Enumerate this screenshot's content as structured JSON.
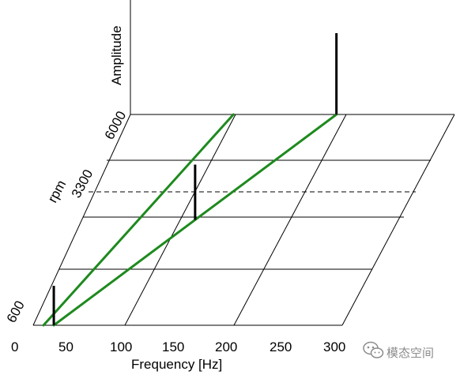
{
  "chart_data": {
    "type": "line",
    "title": "",
    "xlabel": "Frequency [Hz]",
    "ylabel": "rpm",
    "zlabel": "Amplitude",
    "x_ticks": [
      "0",
      "50",
      "100",
      "150",
      "200",
      "250",
      "300"
    ],
    "y_ticks": [
      "600",
      "3300",
      "6000"
    ],
    "xlim": [
      0,
      300
    ],
    "ylim": [
      600,
      6000
    ],
    "highlighted_rpm": 3300,
    "series": [
      {
        "points": [
          [
            10,
            600
          ],
          [
            100,
            6000
          ]
        ]
      },
      {
        "points": [
          [
            20,
            600
          ],
          [
            200,
            6000
          ]
        ]
      }
    ],
    "amplitude_bars": [
      {
        "x": 10,
        "rpm": 600
      },
      {
        "x": 20,
        "rpm": 600
      },
      {
        "x": 200,
        "rpm": 6000
      },
      {
        "x": 110,
        "rpm": 3300
      }
    ],
    "colors": {
      "order_lines": "#1e8a1e",
      "amplitude_bars": "#000000",
      "grid": "#000000"
    }
  },
  "watermark": {
    "icon": "wechat-icon",
    "text": "模态空间"
  }
}
